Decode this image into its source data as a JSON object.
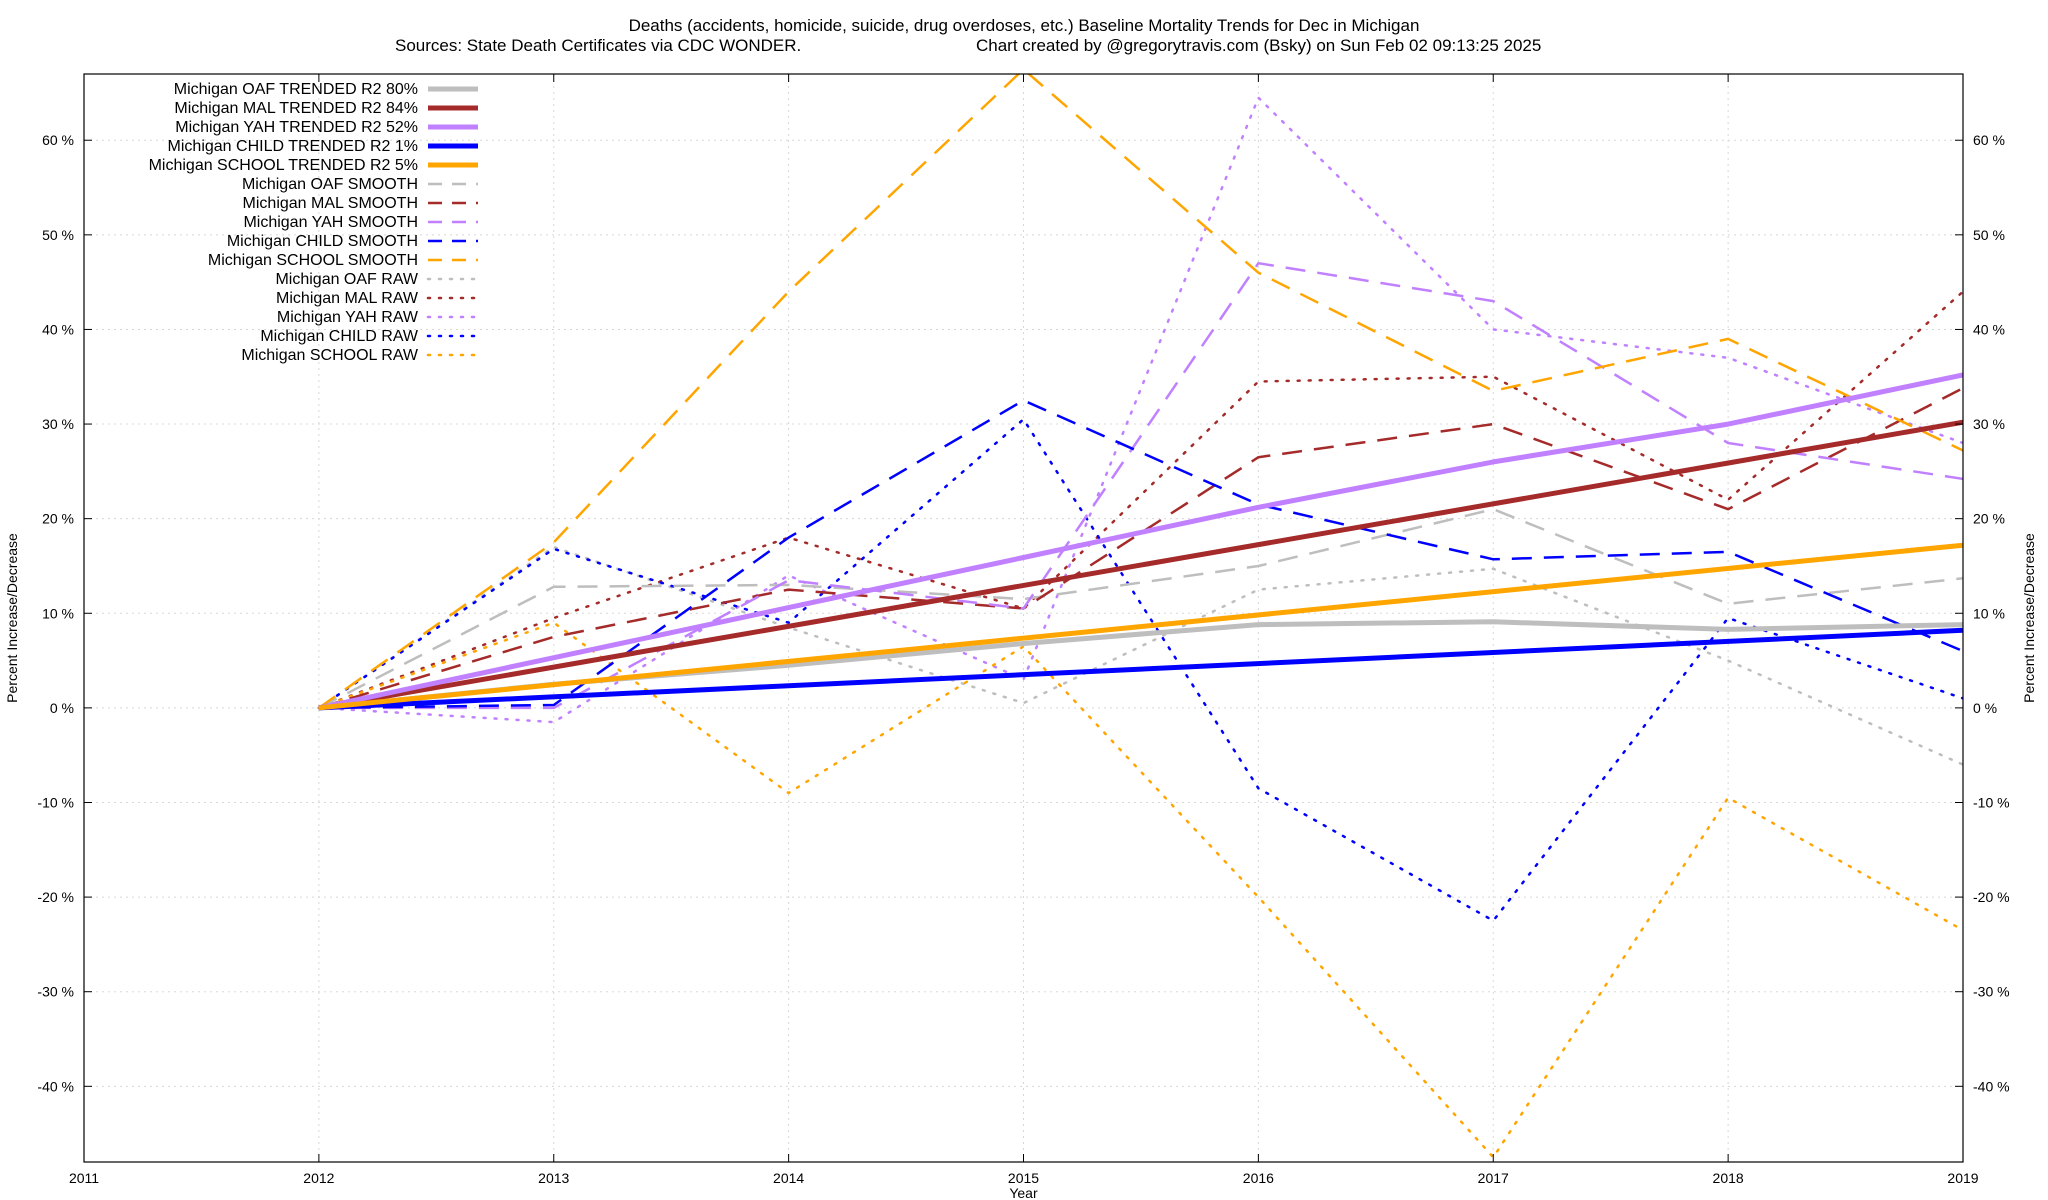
{
  "chart_data": {
    "type": "line",
    "title": "Deaths (accidents, homicide, suicide, drug overdoses, etc.)  Baseline Mortality Trends for Dec in Michigan",
    "subtitle_left": "Sources: State Death Certificates via CDC WONDER.",
    "subtitle_right": "Chart created by @gregorytravis.com (Bsky) on Sun Feb 02 09:13:25 2025",
    "xlabel": "Year",
    "ylabel_left": "Percent Increase/Decrease",
    "ylabel_right": "Percent Increase/Decrease",
    "xlim": [
      2011,
      2019
    ],
    "ylim": [
      -48,
      67
    ],
    "x_ticks": [
      2011,
      2012,
      2013,
      2014,
      2015,
      2016,
      2017,
      2018,
      2019
    ],
    "x_tick_labels": [
      "2011",
      "2012",
      "2013",
      "2014",
      "2015",
      "2016",
      "2017",
      "2018",
      "2019"
    ],
    "y_ticks": [
      -40,
      -30,
      -20,
      -10,
      0,
      10,
      20,
      30,
      40,
      50,
      60
    ],
    "y_tick_labels": [
      "-40 %",
      "-30 %",
      "-20 %",
      "-10 %",
      "0 %",
      "10 %",
      "20 %",
      "30 %",
      "40 %",
      "50 %",
      "60 %"
    ],
    "grid": true,
    "legend_position": "top-left",
    "series": [
      {
        "name": "Michigan OAF TRENDED R2  80%",
        "style": "solid",
        "color": "#bebebe",
        "x": [
          2012,
          2013,
          2014,
          2015,
          2016,
          2017,
          2018,
          2019
        ],
        "values": [
          0,
          2.5,
          4.5,
          6.8,
          8.8,
          9.1,
          8.3,
          8.8
        ]
      },
      {
        "name": "Michigan MAL TRENDED R2  84%",
        "style": "solid",
        "color": "#a52a2a",
        "x": [
          2012,
          2019
        ],
        "values": [
          0,
          30.2
        ]
      },
      {
        "name": "Michigan YAH TRENDED R2  52%",
        "style": "solid",
        "color": "#c080ff",
        "x": [
          2012,
          2013,
          2014,
          2015,
          2016,
          2017,
          2018,
          2019
        ],
        "values": [
          0,
          5.3,
          10.6,
          15.9,
          21.2,
          26.0,
          30.0,
          35.2
        ]
      },
      {
        "name": "Michigan CHILD TRENDED R2  1%",
        "style": "solid",
        "color": "#0000ff",
        "x": [
          2012,
          2019
        ],
        "values": [
          0,
          8.2
        ]
      },
      {
        "name": "Michigan SCHOOL TRENDED R2  5%",
        "style": "solid",
        "color": "#ffa500",
        "x": [
          2012,
          2019
        ],
        "values": [
          0,
          17.2
        ]
      },
      {
        "name": "Michigan OAF SMOOTH",
        "style": "dashed",
        "color": "#bebebe",
        "x": [
          2012,
          2013,
          2014,
          2015,
          2016,
          2017,
          2018,
          2019
        ],
        "values": [
          0,
          12.8,
          13.0,
          11.5,
          15.0,
          21.0,
          11.0,
          13.7
        ]
      },
      {
        "name": "Michigan MAL SMOOTH",
        "style": "dashed",
        "color": "#a52a2a",
        "x": [
          2012,
          2013,
          2014,
          2015,
          2016,
          2017,
          2018,
          2019
        ],
        "values": [
          0,
          7.5,
          12.5,
          10.5,
          26.5,
          30.0,
          21.0,
          33.8
        ]
      },
      {
        "name": "Michigan YAH SMOOTH",
        "style": "dashed",
        "color": "#c080ff",
        "x": [
          2012,
          2013,
          2014,
          2015,
          2016,
          2017,
          2018,
          2019
        ],
        "values": [
          0,
          0,
          13.5,
          10.5,
          47.0,
          43.0,
          28.0,
          24.2
        ]
      },
      {
        "name": "Michigan CHILD SMOOTH",
        "style": "dashed",
        "color": "#0000ff",
        "x": [
          2012,
          2013,
          2014,
          2015,
          2016,
          2017,
          2018,
          2019
        ],
        "values": [
          0,
          0.3,
          18.0,
          32.5,
          21.5,
          15.7,
          16.5,
          6.0
        ]
      },
      {
        "name": "Michigan SCHOOL SMOOTH",
        "style": "dashed",
        "color": "#ffa500",
        "x": [
          2012,
          2013,
          2014,
          2015,
          2016,
          2017,
          2018,
          2019
        ],
        "values": [
          0,
          17.5,
          44.0,
          67.5,
          46.0,
          33.5,
          39.0,
          27.2
        ]
      },
      {
        "name": "Michigan OAF RAW",
        "style": "dotted",
        "color": "#bebebe",
        "x": [
          2012,
          2013,
          2014,
          2015,
          2016,
          2017,
          2018,
          2019
        ],
        "values": [
          0,
          17.0,
          8.5,
          0.5,
          12.5,
          14.7,
          5.0,
          -6.0
        ]
      },
      {
        "name": "Michigan MAL RAW",
        "style": "dotted",
        "color": "#a52a2a",
        "x": [
          2012,
          2013,
          2014,
          2015,
          2016,
          2017,
          2018,
          2019
        ],
        "values": [
          0,
          9.5,
          18.0,
          10.5,
          34.5,
          35.0,
          22.0,
          44.0
        ]
      },
      {
        "name": "Michigan YAH RAW",
        "style": "dotted",
        "color": "#c080ff",
        "x": [
          2012,
          2013,
          2014,
          2015,
          2016,
          2017,
          2018,
          2019
        ],
        "values": [
          0,
          -1.5,
          14.0,
          3.0,
          64.5,
          40.0,
          37.0,
          28.0
        ]
      },
      {
        "name": "Michigan CHILD RAW",
        "style": "dotted",
        "color": "#0000ff",
        "x": [
          2012,
          2013,
          2014,
          2015,
          2016,
          2017,
          2018,
          2019
        ],
        "values": [
          0,
          16.8,
          9.0,
          30.5,
          -8.5,
          -22.5,
          9.5,
          1.0
        ]
      },
      {
        "name": "Michigan SCHOOL RAW",
        "style": "dotted",
        "color": "#ffa500",
        "x": [
          2012,
          2013,
          2014,
          2015,
          2016,
          2017,
          2018,
          2019
        ],
        "values": [
          0,
          9.0,
          -9.0,
          6.5,
          -20.0,
          -47.5,
          -9.5,
          -23.5
        ]
      }
    ]
  }
}
